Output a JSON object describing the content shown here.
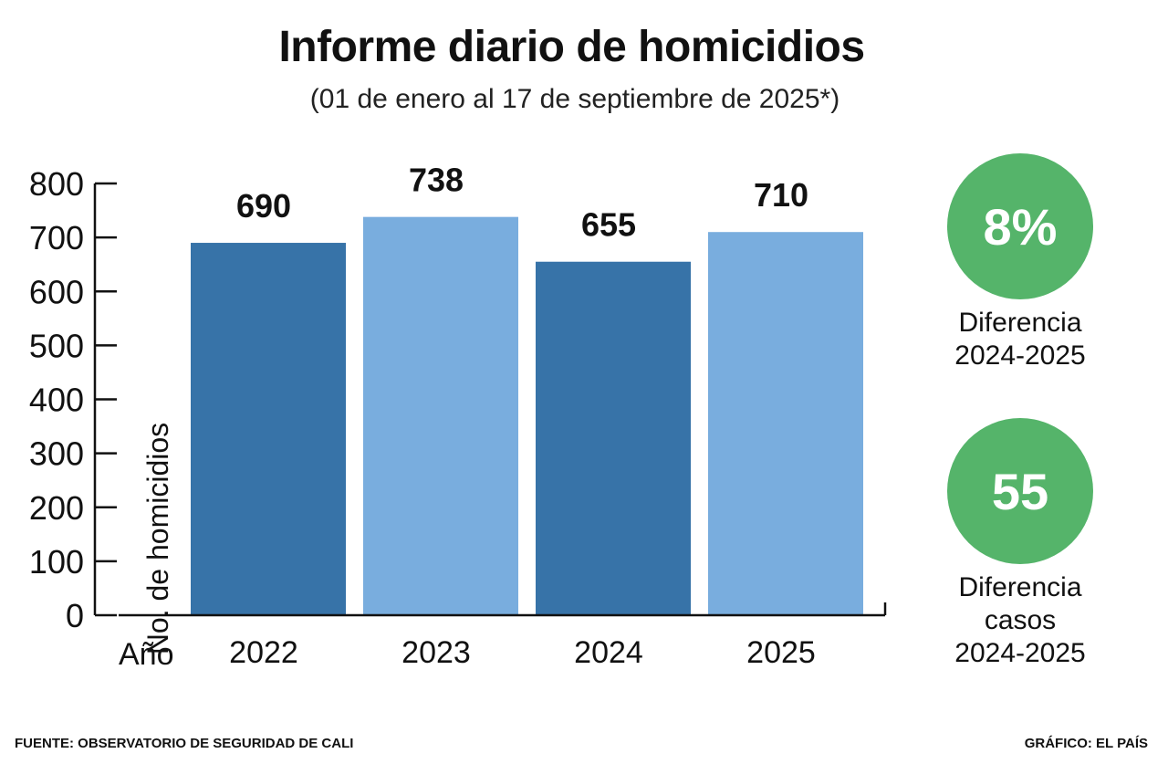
{
  "header": {
    "title": "Informe diario de homicidios",
    "subtitle": "(01 de enero  al 17 de septiembre de 2025*)"
  },
  "colors": {
    "dark_blue": "#3773A8",
    "light_blue": "#79ADDE",
    "green": "#55B46A",
    "axis": "#111111"
  },
  "chart_data": {
    "type": "bar",
    "title": "Informe diario de homicidios",
    "subtitle": "(01 de enero  al 17 de septiembre de 2025*)",
    "xlabel": "Año",
    "ylabel": "No. de homicidios",
    "categories": [
      "2022",
      "2023",
      "2024",
      "2025"
    ],
    "values": [
      690,
      738,
      655,
      710
    ],
    "bar_colors": [
      "#3773A8",
      "#79ADDE",
      "#3773A8",
      "#79ADDE"
    ],
    "ylim": [
      0,
      800
    ],
    "yticks": [
      0,
      100,
      200,
      300,
      400,
      500,
      600,
      700,
      800
    ],
    "grid": false,
    "legend": "none"
  },
  "stats": [
    {
      "value": "8%",
      "label_lines": [
        "Diferencia",
        "2024-2025"
      ]
    },
    {
      "value": "55",
      "label_lines": [
        "Diferencia",
        "casos",
        "2024-2025"
      ]
    }
  ],
  "footer": {
    "source": "FUENTE: OBSERVATORIO DE SEGURIDAD DE CALI",
    "credit": "GRÁFICO: EL PAÍS"
  }
}
